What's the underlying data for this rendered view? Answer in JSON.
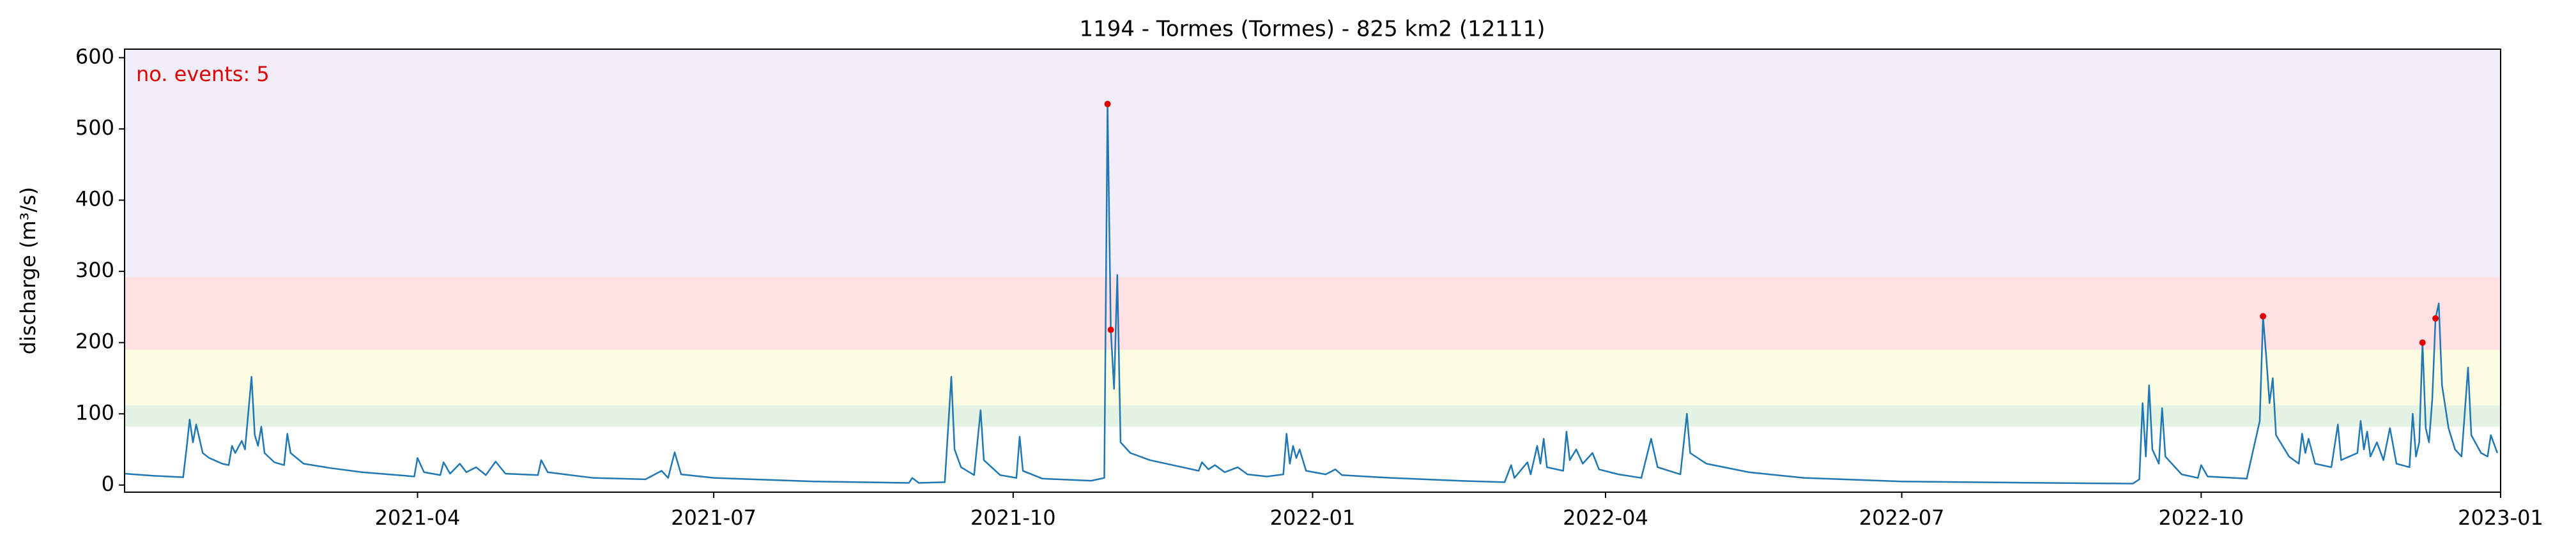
{
  "chart_data": {
    "type": "line",
    "title": "1194 - Tormes (Tormes) - 825 km2 (12111)",
    "ylabel": "discharge (m³/s)",
    "annotation": "no. events: 5",
    "annotation_color": "#e00000",
    "xlim": [
      "2021-01-01",
      "2023-01-01"
    ],
    "xticks": [
      {
        "value": "2021-04-01",
        "label": "2021-04"
      },
      {
        "value": "2021-07-01",
        "label": "2021-07"
      },
      {
        "value": "2021-10-01",
        "label": "2021-10"
      },
      {
        "value": "2022-01-01",
        "label": "2022-01"
      },
      {
        "value": "2022-04-01",
        "label": "2022-04"
      },
      {
        "value": "2022-07-01",
        "label": "2022-07"
      },
      {
        "value": "2022-10-01",
        "label": "2022-10"
      },
      {
        "value": "2023-01-01",
        "label": "2023-01"
      }
    ],
    "ylim": [
      -10,
      612
    ],
    "yticks": [
      0,
      100,
      200,
      300,
      400,
      500,
      600
    ],
    "bands": [
      {
        "range": [
          82,
          112
        ],
        "color": "#e3f2e3"
      },
      {
        "range": [
          112,
          190
        ],
        "color": "#fdfde2"
      },
      {
        "range": [
          190,
          292
        ],
        "color": "#ffe1e4"
      },
      {
        "range": [
          292,
          612
        ],
        "color": "#f2eef9"
      }
    ],
    "x": [
      "2021-01-01",
      "2021-01-10",
      "2021-01-19",
      "2021-01-20",
      "2021-01-21",
      "2021-01-22",
      "2021-01-23",
      "2021-01-25",
      "2021-01-27",
      "2021-01-31",
      "2021-02-02",
      "2021-02-03",
      "2021-02-04",
      "2021-02-06",
      "2021-02-07",
      "2021-02-09",
      "2021-02-10",
      "2021-02-11",
      "2021-02-12",
      "2021-02-13",
      "2021-02-16",
      "2021-02-19",
      "2021-02-20",
      "2021-02-21",
      "2021-02-25",
      "2021-03-05",
      "2021-03-15",
      "2021-03-31",
      "2021-04-01",
      "2021-04-03",
      "2021-04-08",
      "2021-04-09",
      "2021-04-11",
      "2021-04-14",
      "2021-04-16",
      "2021-04-19",
      "2021-04-22",
      "2021-04-25",
      "2021-04-28",
      "2021-05-08",
      "2021-05-09",
      "2021-05-11",
      "2021-05-25",
      "2021-06-10",
      "2021-06-15",
      "2021-06-17",
      "2021-06-19",
      "2021-06-21",
      "2021-07-01",
      "2021-08-01",
      "2021-08-30",
      "2021-08-31",
      "2021-09-02",
      "2021-09-10",
      "2021-09-12",
      "2021-09-13",
      "2021-09-15",
      "2021-09-19",
      "2021-09-21",
      "2021-09-22",
      "2021-09-27",
      "2021-10-02",
      "2021-10-03",
      "2021-10-04",
      "2021-10-10",
      "2021-10-25",
      "2021-10-29",
      "2021-10-30",
      "2021-10-31",
      "2021-11-01",
      "2021-11-02",
      "2021-11-03",
      "2021-11-06",
      "2021-11-12",
      "2021-11-22",
      "2021-11-27",
      "2021-11-28",
      "2021-11-30",
      "2021-12-02",
      "2021-12-05",
      "2021-12-09",
      "2021-12-12",
      "2021-12-18",
      "2021-12-23",
      "2021-12-24",
      "2021-12-25",
      "2021-12-26",
      "2021-12-27",
      "2021-12-28",
      "2021-12-30",
      "2022-01-05",
      "2022-01-08",
      "2022-01-10",
      "2022-01-25",
      "2022-02-15",
      "2022-03-01",
      "2022-03-03",
      "2022-03-04",
      "2022-03-08",
      "2022-03-09",
      "2022-03-11",
      "2022-03-12",
      "2022-03-13",
      "2022-03-14",
      "2022-03-19",
      "2022-03-20",
      "2022-03-21",
      "2022-03-23",
      "2022-03-25",
      "2022-03-28",
      "2022-03-30",
      "2022-04-05",
      "2022-04-12",
      "2022-04-15",
      "2022-04-17",
      "2022-04-24",
      "2022-04-26",
      "2022-04-27",
      "2022-05-02",
      "2022-05-15",
      "2022-06-01",
      "2022-07-01",
      "2022-08-15",
      "2022-09-10",
      "2022-09-12",
      "2022-09-13",
      "2022-09-14",
      "2022-09-15",
      "2022-09-16",
      "2022-09-18",
      "2022-09-19",
      "2022-09-20",
      "2022-09-25",
      "2022-09-30",
      "2022-10-01",
      "2022-10-03",
      "2022-10-15",
      "2022-10-19",
      "2022-10-20",
      "2022-10-21",
      "2022-10-22",
      "2022-10-23",
      "2022-10-24",
      "2022-10-28",
      "2022-10-31",
      "2022-11-01",
      "2022-11-02",
      "2022-11-03",
      "2022-11-05",
      "2022-11-10",
      "2022-11-12",
      "2022-11-13",
      "2022-11-18",
      "2022-11-19",
      "2022-11-20",
      "2022-11-21",
      "2022-11-22",
      "2022-11-24",
      "2022-11-26",
      "2022-11-28",
      "2022-11-30",
      "2022-12-04",
      "2022-12-05",
      "2022-12-06",
      "2022-12-07",
      "2022-12-08",
      "2022-12-09",
      "2022-12-10",
      "2022-12-11",
      "2022-12-12",
      "2022-12-13",
      "2022-12-14",
      "2022-12-16",
      "2022-12-18",
      "2022-12-20",
      "2022-12-22",
      "2022-12-23",
      "2022-12-26",
      "2022-12-28",
      "2022-12-29",
      "2022-12-31"
    ],
    "series": [
      {
        "color": "#1f77b4",
        "values": [
          16,
          13,
          11,
          50,
          92,
          60,
          85,
          45,
          38,
          30,
          28,
          55,
          45,
          62,
          50,
          152,
          70,
          55,
          82,
          45,
          32,
          28,
          72,
          45,
          30,
          24,
          18,
          12,
          38,
          18,
          14,
          32,
          16,
          30,
          18,
          25,
          14,
          33,
          16,
          14,
          35,
          18,
          10,
          8,
          20,
          10,
          46,
          15,
          10,
          5,
          3,
          10,
          3,
          4,
          152,
          50,
          25,
          14,
          105,
          35,
          14,
          10,
          68,
          20,
          9,
          6,
          10,
          535,
          218,
          135,
          295,
          60,
          45,
          35,
          25,
          20,
          32,
          22,
          28,
          18,
          25,
          15,
          12,
          15,
          72,
          30,
          55,
          38,
          50,
          20,
          15,
          22,
          14,
          10,
          6,
          4,
          28,
          10,
          32,
          15,
          55,
          30,
          65,
          25,
          20,
          75,
          35,
          50,
          30,
          45,
          22,
          15,
          10,
          65,
          25,
          15,
          100,
          45,
          30,
          18,
          10,
          5,
          3,
          2,
          8,
          115,
          40,
          140,
          50,
          30,
          108,
          40,
          15,
          10,
          28,
          12,
          9,
          90,
          237,
          180,
          115,
          150,
          70,
          40,
          30,
          72,
          45,
          65,
          30,
          25,
          85,
          35,
          45,
          90,
          50,
          75,
          40,
          60,
          35,
          80,
          30,
          25,
          100,
          40,
          60,
          200,
          80,
          60,
          120,
          234,
          255,
          140,
          80,
          50,
          40,
          165,
          70,
          45,
          40,
          70,
          45
        ]
      }
    ],
    "events": {
      "color": "#e00000",
      "x": [
        "2021-10-30",
        "2021-10-31",
        "2022-10-20",
        "2022-12-08",
        "2022-12-12"
      ],
      "values": [
        535,
        218,
        237,
        200,
        234
      ]
    }
  }
}
